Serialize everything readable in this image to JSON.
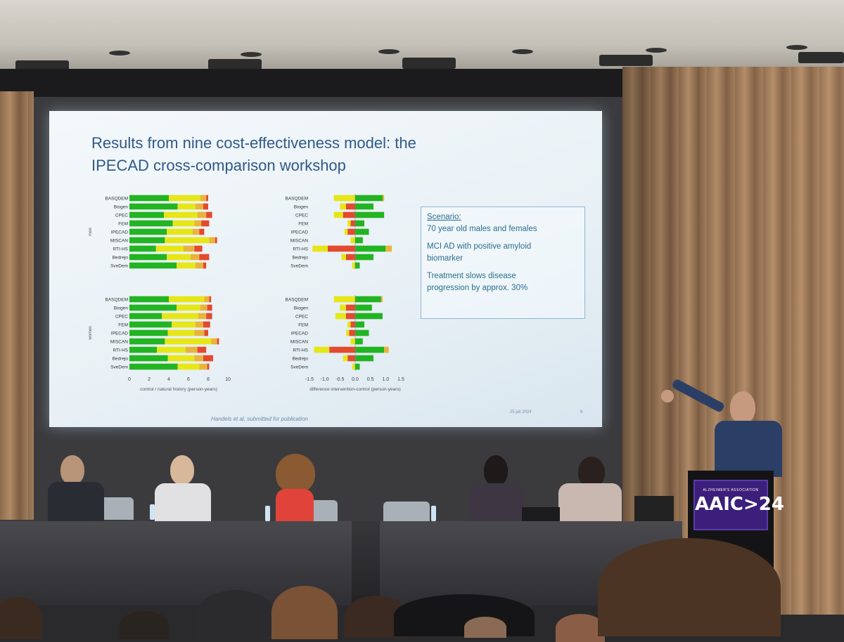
{
  "slide": {
    "title_lines": [
      "Results from nine cost-effectiveness model: the",
      "IPECAD cross-comparison workshop"
    ],
    "scenario": {
      "heading": "Scenario:",
      "line1": "70 year old males and females",
      "line2a": "MCI AD with positive amyloid",
      "line2b": "biomarker",
      "line3a": "Treatment slows disease",
      "line3b": "progression by approx. 30%"
    },
    "citation": "Handels et al, submitted for publication",
    "date": "25 juli 2024",
    "page_number": "6"
  },
  "chart_data": [
    {
      "type": "bar",
      "orientation": "horizontal",
      "stacked": true,
      "group": "men",
      "categories": [
        "BASQDEM",
        "Biogen",
        "CPEC",
        "FEM",
        "IPECAD",
        "MISCAN",
        "RTI-HS",
        "Bedrejo",
        "SveDem"
      ],
      "series": [
        {
          "name": "",
          "color": "#22b422",
          "values": [
            4.0,
            4.9,
            3.5,
            4.4,
            3.8,
            3.6,
            2.7,
            3.8,
            4.8
          ]
        },
        {
          "name": "",
          "color": "#e6e619",
          "values": [
            3.2,
            1.8,
            3.4,
            2.2,
            2.6,
            4.5,
            2.8,
            2.4,
            1.9
          ]
        },
        {
          "name": "",
          "color": "#e8b43c",
          "values": [
            0.6,
            0.8,
            0.9,
            0.7,
            0.7,
            0.6,
            1.1,
            0.9,
            0.8
          ]
        },
        {
          "name": "",
          "color": "#e34a2e",
          "values": [
            0.2,
            0.5,
            0.6,
            0.8,
            0.5,
            0.2,
            0.8,
            1.0,
            0.3
          ]
        }
      ],
      "xlim": [
        0,
        10
      ],
      "xticks": [
        "0",
        "2",
        "4",
        "6",
        "8",
        "10"
      ],
      "xlabel": ""
    },
    {
      "type": "bar",
      "orientation": "horizontal",
      "stacked": true,
      "group": "women",
      "categories": [
        "BASQDEM",
        "Biogen",
        "CPEC",
        "FEM",
        "IPECAD",
        "MISCAN",
        "RTI-HS",
        "Bedrejo",
        "SveDem"
      ],
      "series": [
        {
          "name": "",
          "color": "#22b422",
          "values": [
            4.0,
            4.8,
            3.3,
            4.3,
            3.9,
            3.6,
            2.8,
            3.9,
            4.9
          ]
        },
        {
          "name": "",
          "color": "#e6e619",
          "values": [
            3.6,
            2.4,
            3.7,
            2.4,
            2.7,
            4.7,
            2.9,
            2.7,
            2.2
          ]
        },
        {
          "name": "",
          "color": "#e8b43c",
          "values": [
            0.5,
            0.7,
            0.8,
            0.8,
            1.0,
            0.6,
            1.2,
            0.9,
            0.8
          ]
        },
        {
          "name": "",
          "color": "#e34a2e",
          "values": [
            0.2,
            0.5,
            0.6,
            0.7,
            0.4,
            0.2,
            0.9,
            1.0,
            0.2
          ]
        }
      ],
      "xlim": [
        0,
        10
      ],
      "xticks": [
        "0",
        "2",
        "4",
        "6",
        "8",
        "10"
      ],
      "xlabel": "control / natural history (person-years)"
    },
    {
      "type": "bar",
      "orientation": "horizontal",
      "stacked": true,
      "diverging": true,
      "group": "men",
      "categories": [
        "BASQDEM",
        "Biogen",
        "CPEC",
        "FEM",
        "IPECAD",
        "MISCAN",
        "RTI-HS",
        "Bedrejo",
        "SveDem"
      ],
      "series": [
        {
          "name": "",
          "color": "#e34a2e",
          "values": [
            0,
            -0.3,
            -0.4,
            -0.15,
            -0.25,
            0,
            -0.9,
            -0.3,
            0
          ]
        },
        {
          "name": "",
          "color": "#e6e619",
          "values": [
            -0.7,
            -0.2,
            -0.3,
            -0.1,
            -0.1,
            -0.15,
            -0.5,
            -0.15,
            -0.1
          ]
        },
        {
          "name": "",
          "color": "#22b422",
          "values": [
            0.9,
            0.6,
            0.95,
            0.3,
            0.45,
            0.25,
            1.0,
            0.6,
            0.15
          ]
        },
        {
          "name": "",
          "color": "#e8b43c",
          "values": [
            0.05,
            0,
            0,
            0,
            0,
            0,
            0.2,
            0,
            0
          ]
        }
      ],
      "xlim": [
        -1.5,
        1.5
      ],
      "xticks": [
        "-1.5",
        "-1.0",
        "-0.5",
        "0.0",
        "0.5",
        "1.0",
        "1.5"
      ],
      "xlabel": ""
    },
    {
      "type": "bar",
      "orientation": "horizontal",
      "stacked": true,
      "diverging": true,
      "group": "women",
      "categories": [
        "BASQDEM",
        "Biogen",
        "CPEC",
        "FEM",
        "IPECAD",
        "MISCAN",
        "RTI-HS",
        "Bedrejo",
        "SveDem"
      ],
      "series": [
        {
          "name": "",
          "color": "#e34a2e",
          "values": [
            0,
            -0.3,
            -0.3,
            -0.15,
            -0.2,
            0,
            -0.85,
            -0.25,
            0
          ]
        },
        {
          "name": "",
          "color": "#e6e619",
          "values": [
            -0.7,
            -0.2,
            -0.35,
            -0.1,
            -0.1,
            -0.15,
            -0.5,
            -0.15,
            -0.1
          ]
        },
        {
          "name": "",
          "color": "#22b422",
          "values": [
            0.85,
            0.55,
            0.9,
            0.3,
            0.45,
            0.25,
            0.95,
            0.6,
            0.15
          ]
        },
        {
          "name": "",
          "color": "#e8b43c",
          "values": [
            0.05,
            0,
            0,
            0,
            0,
            0,
            0.15,
            0,
            0
          ]
        }
      ],
      "xlim": [
        -1.5,
        1.5
      ],
      "xticks": [
        "-1.5",
        "-1.0",
        "-0.5",
        "0.0",
        "0.5",
        "1.0",
        "1.5"
      ],
      "xlabel": "difference intervention-control (person-years)"
    }
  ],
  "chart_group_labels": [
    "men",
    "women"
  ],
  "podium": {
    "org": "ALZHEIMER'S ASSOCIATION",
    "event": "AAIC>24",
    "color": "#3b1f7a"
  }
}
